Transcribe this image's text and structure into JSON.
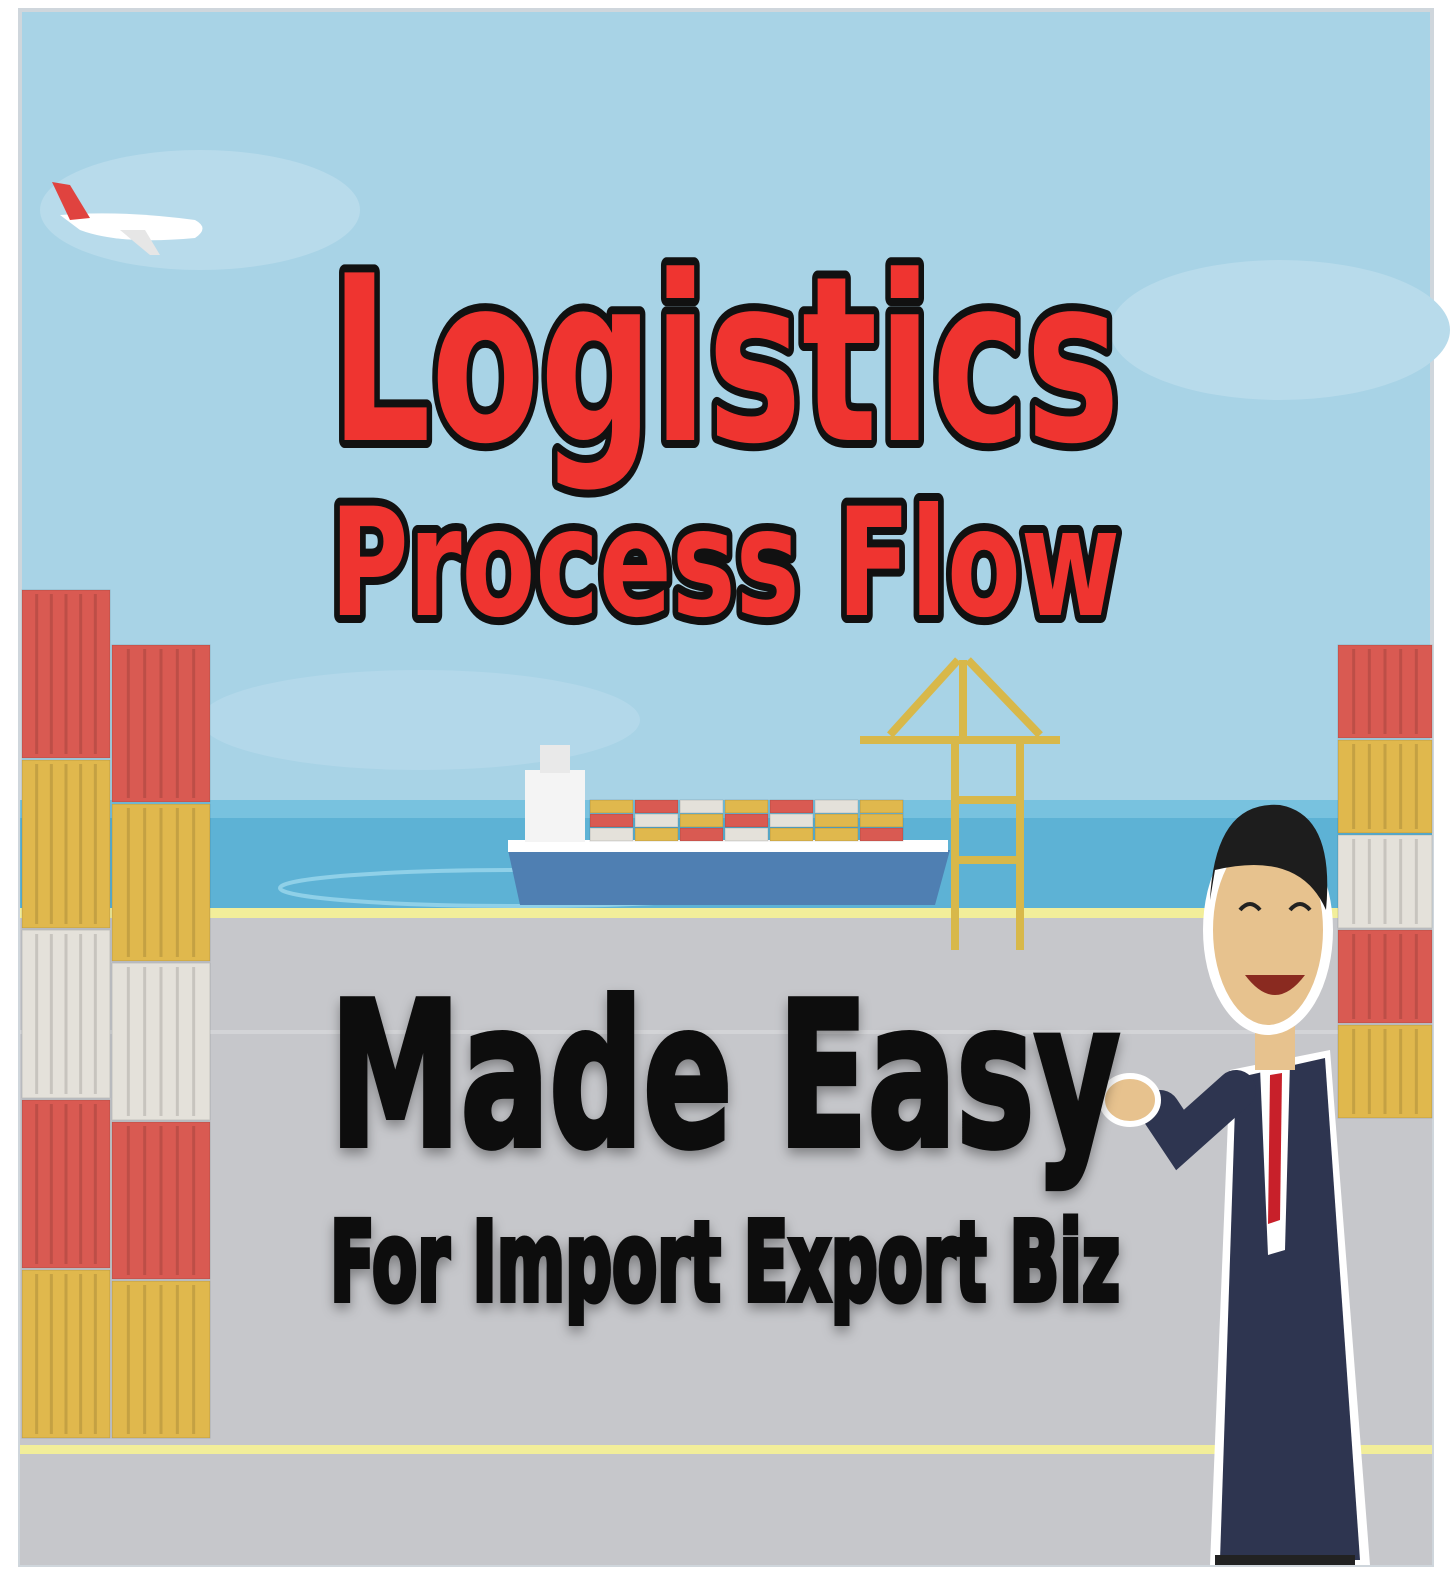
{
  "title": {
    "line1": "Logistics",
    "line2": "Process Flow"
  },
  "subtitle": {
    "line1": "Made Easy",
    "line2": "For Import Export Biz"
  }
}
